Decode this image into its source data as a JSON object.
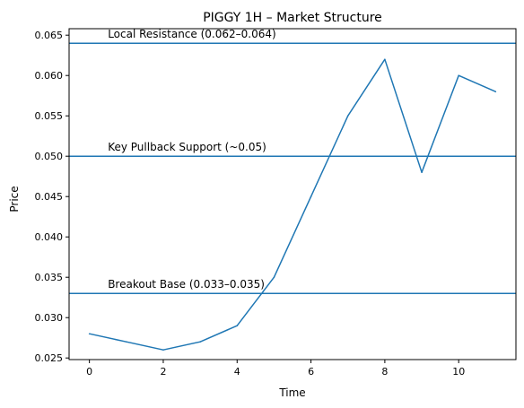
{
  "chart_data": {
    "type": "line",
    "title": "PIGGY 1H – Market Structure",
    "xlabel": "Time",
    "ylabel": "Price",
    "xlim": [
      -0.55,
      11.55
    ],
    "ylim": [
      0.0248,
      0.0658
    ],
    "xticks": [
      0,
      2,
      4,
      6,
      8,
      10
    ],
    "yticks": [
      0.025,
      0.03,
      0.035,
      0.04,
      0.045,
      0.05,
      0.055,
      0.06,
      0.065
    ],
    "ytick_labels": [
      "0.025",
      "0.030",
      "0.035",
      "0.040",
      "0.045",
      "0.050",
      "0.055",
      "0.060",
      "0.065"
    ],
    "grid": false,
    "line_color": "#1f77b4",
    "series": [
      {
        "x": [
          0,
          1,
          2,
          3,
          4,
          5,
          6,
          7,
          8,
          9,
          10,
          11
        ],
        "values": [
          0.028,
          0.027,
          0.026,
          0.027,
          0.029,
          0.035,
          0.045,
          0.055,
          0.062,
          0.048,
          0.06,
          0.058
        ]
      }
    ],
    "hlines": [
      {
        "y": 0.064,
        "label": "Local Resistance (0.062–0.064)",
        "label_x": 0.5
      },
      {
        "y": 0.05,
        "label": "Key Pullback Support (~0.05)",
        "label_x": 0.5
      },
      {
        "y": 0.033,
        "label": "Breakout Base (0.033–0.035)",
        "label_x": 0.5
      }
    ]
  }
}
